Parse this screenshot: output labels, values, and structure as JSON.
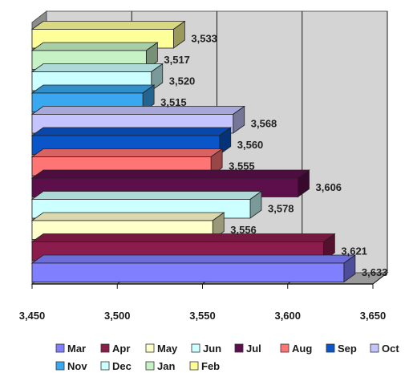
{
  "chart_data": {
    "type": "bar",
    "orientation": "horizontal",
    "style": "3d-clustered",
    "categories": [
      ""
    ],
    "series": [
      {
        "name": "Mar",
        "value": 3633,
        "label": "3,633",
        "color": "#8080ff"
      },
      {
        "name": "Apr",
        "value": 3621,
        "label": "3,621",
        "color": "#8b1d4c"
      },
      {
        "name": "May",
        "value": 3556,
        "label": "3,556",
        "color": "#ffffcc"
      },
      {
        "name": "Jun",
        "value": 3578,
        "label": "3,578",
        "color": "#ccffff"
      },
      {
        "name": "Jul",
        "value": 3606,
        "label": "3,606",
        "color": "#5c0f4a"
      },
      {
        "name": "Aug",
        "value": 3555,
        "label": "3,555",
        "color": "#ff7474"
      },
      {
        "name": "Sep",
        "value": 3560,
        "label": "3,560",
        "color": "#0a55c8"
      },
      {
        "name": "Oct",
        "value": 3568,
        "label": "3,568",
        "color": "#c4c4ff"
      },
      {
        "name": "Nov",
        "value": 3515,
        "label": "3,515",
        "color": "#3aa8f0"
      },
      {
        "name": "Dec",
        "value": 3520,
        "label": "3,520",
        "color": "#ccffff"
      },
      {
        "name": "Jan",
        "value": 3517,
        "label": "3,517",
        "color": "#c6f2c6"
      },
      {
        "name": "Feb",
        "value": 3533,
        "label": "3,533",
        "color": "#ffff99"
      }
    ],
    "xlim": [
      3450,
      3650
    ],
    "x_ticks": [
      3450,
      3500,
      3550,
      3600,
      3650
    ],
    "x_tick_labels": [
      "3,450",
      "3,500",
      "3,550",
      "3,600",
      "3,650"
    ],
    "title": "",
    "xlabel": "",
    "ylabel": "",
    "grid": "vertical",
    "legend_position": "bottom",
    "plot_background": "#d4d4d4"
  }
}
